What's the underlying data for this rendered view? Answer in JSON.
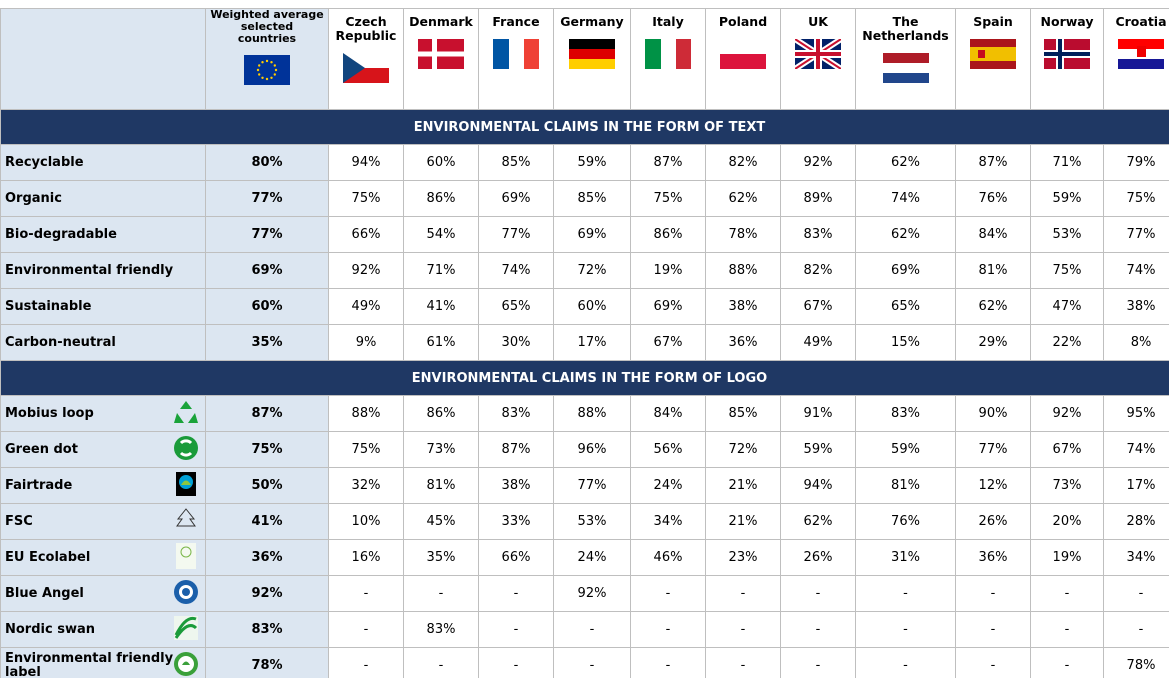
{
  "header": {
    "weighted": "Weighted average selected countries",
    "countries": [
      "Czech Republic",
      "Denmark",
      "France",
      "Germany",
      "Italy",
      "Poland",
      "UK",
      "The Netherlands",
      "Spain",
      "Norway",
      "Croatia"
    ]
  },
  "sections": [
    {
      "title": "ENVIRONMENTAL CLAIMS IN THE FORM OF TEXT",
      "rows": [
        {
          "label": "Recyclable",
          "average": "80%",
          "values": [
            "94%",
            "60%",
            "85%",
            "59%",
            "87%",
            "82%",
            "92%",
            "62%",
            "87%",
            "71%",
            "79%"
          ]
        },
        {
          "label": "Organic",
          "average": "77%",
          "values": [
            "75%",
            "86%",
            "69%",
            "85%",
            "75%",
            "62%",
            "89%",
            "74%",
            "76%",
            "59%",
            "75%"
          ]
        },
        {
          "label": "Bio-degradable",
          "average": "77%",
          "values": [
            "66%",
            "54%",
            "77%",
            "69%",
            "86%",
            "78%",
            "83%",
            "62%",
            "84%",
            "53%",
            "77%"
          ]
        },
        {
          "label": "Environmental friendly",
          "average": "69%",
          "values": [
            "92%",
            "71%",
            "74%",
            "72%",
            "19%",
            "88%",
            "82%",
            "69%",
            "81%",
            "75%",
            "74%"
          ]
        },
        {
          "label": "Sustainable",
          "average": "60%",
          "values": [
            "49%",
            "41%",
            "65%",
            "60%",
            "69%",
            "38%",
            "67%",
            "65%",
            "62%",
            "47%",
            "38%"
          ]
        },
        {
          "label": "Carbon-neutral",
          "average": "35%",
          "values": [
            "9%",
            "61%",
            "30%",
            "17%",
            "67%",
            "36%",
            "49%",
            "15%",
            "29%",
            "22%",
            "8%"
          ]
        }
      ]
    },
    {
      "title": "ENVIRONMENTAL CLAIMS IN THE FORM OF LOGO",
      "rows": [
        {
          "label": "Mobius loop",
          "average": "87%",
          "values": [
            "88%",
            "86%",
            "83%",
            "88%",
            "84%",
            "85%",
            "91%",
            "83%",
            "90%",
            "92%",
            "95%"
          ]
        },
        {
          "label": "Green dot",
          "average": "75%",
          "values": [
            "75%",
            "73%",
            "87%",
            "96%",
            "56%",
            "72%",
            "59%",
            "59%",
            "77%",
            "67%",
            "74%"
          ]
        },
        {
          "label": "Fairtrade",
          "average": "50%",
          "values": [
            "32%",
            "81%",
            "38%",
            "77%",
            "24%",
            "21%",
            "94%",
            "81%",
            "12%",
            "73%",
            "17%"
          ]
        },
        {
          "label": "FSC",
          "average": "41%",
          "values": [
            "10%",
            "45%",
            "33%",
            "53%",
            "34%",
            "21%",
            "62%",
            "76%",
            "26%",
            "20%",
            "28%"
          ]
        },
        {
          "label": "EU Ecolabel",
          "average": "36%",
          "values": [
            "16%",
            "35%",
            "66%",
            "24%",
            "46%",
            "23%",
            "26%",
            "31%",
            "36%",
            "19%",
            "34%"
          ]
        },
        {
          "label": "Blue Angel",
          "average": "92%",
          "values": [
            "-",
            "-",
            "-",
            "92%",
            "-",
            "-",
            "-",
            "-",
            "-",
            "-",
            "-"
          ]
        },
        {
          "label": "Nordic swan",
          "average": "83%",
          "values": [
            "-",
            "83%",
            "-",
            "-",
            "-",
            "-",
            "-",
            "-",
            "-",
            "-",
            "-"
          ]
        },
        {
          "label": "Environmental friendly label",
          "average": "78%",
          "values": [
            "-",
            "-",
            "-",
            "-",
            "-",
            "-",
            "-",
            "-",
            "-",
            "-",
            "78%"
          ]
        }
      ]
    }
  ]
}
